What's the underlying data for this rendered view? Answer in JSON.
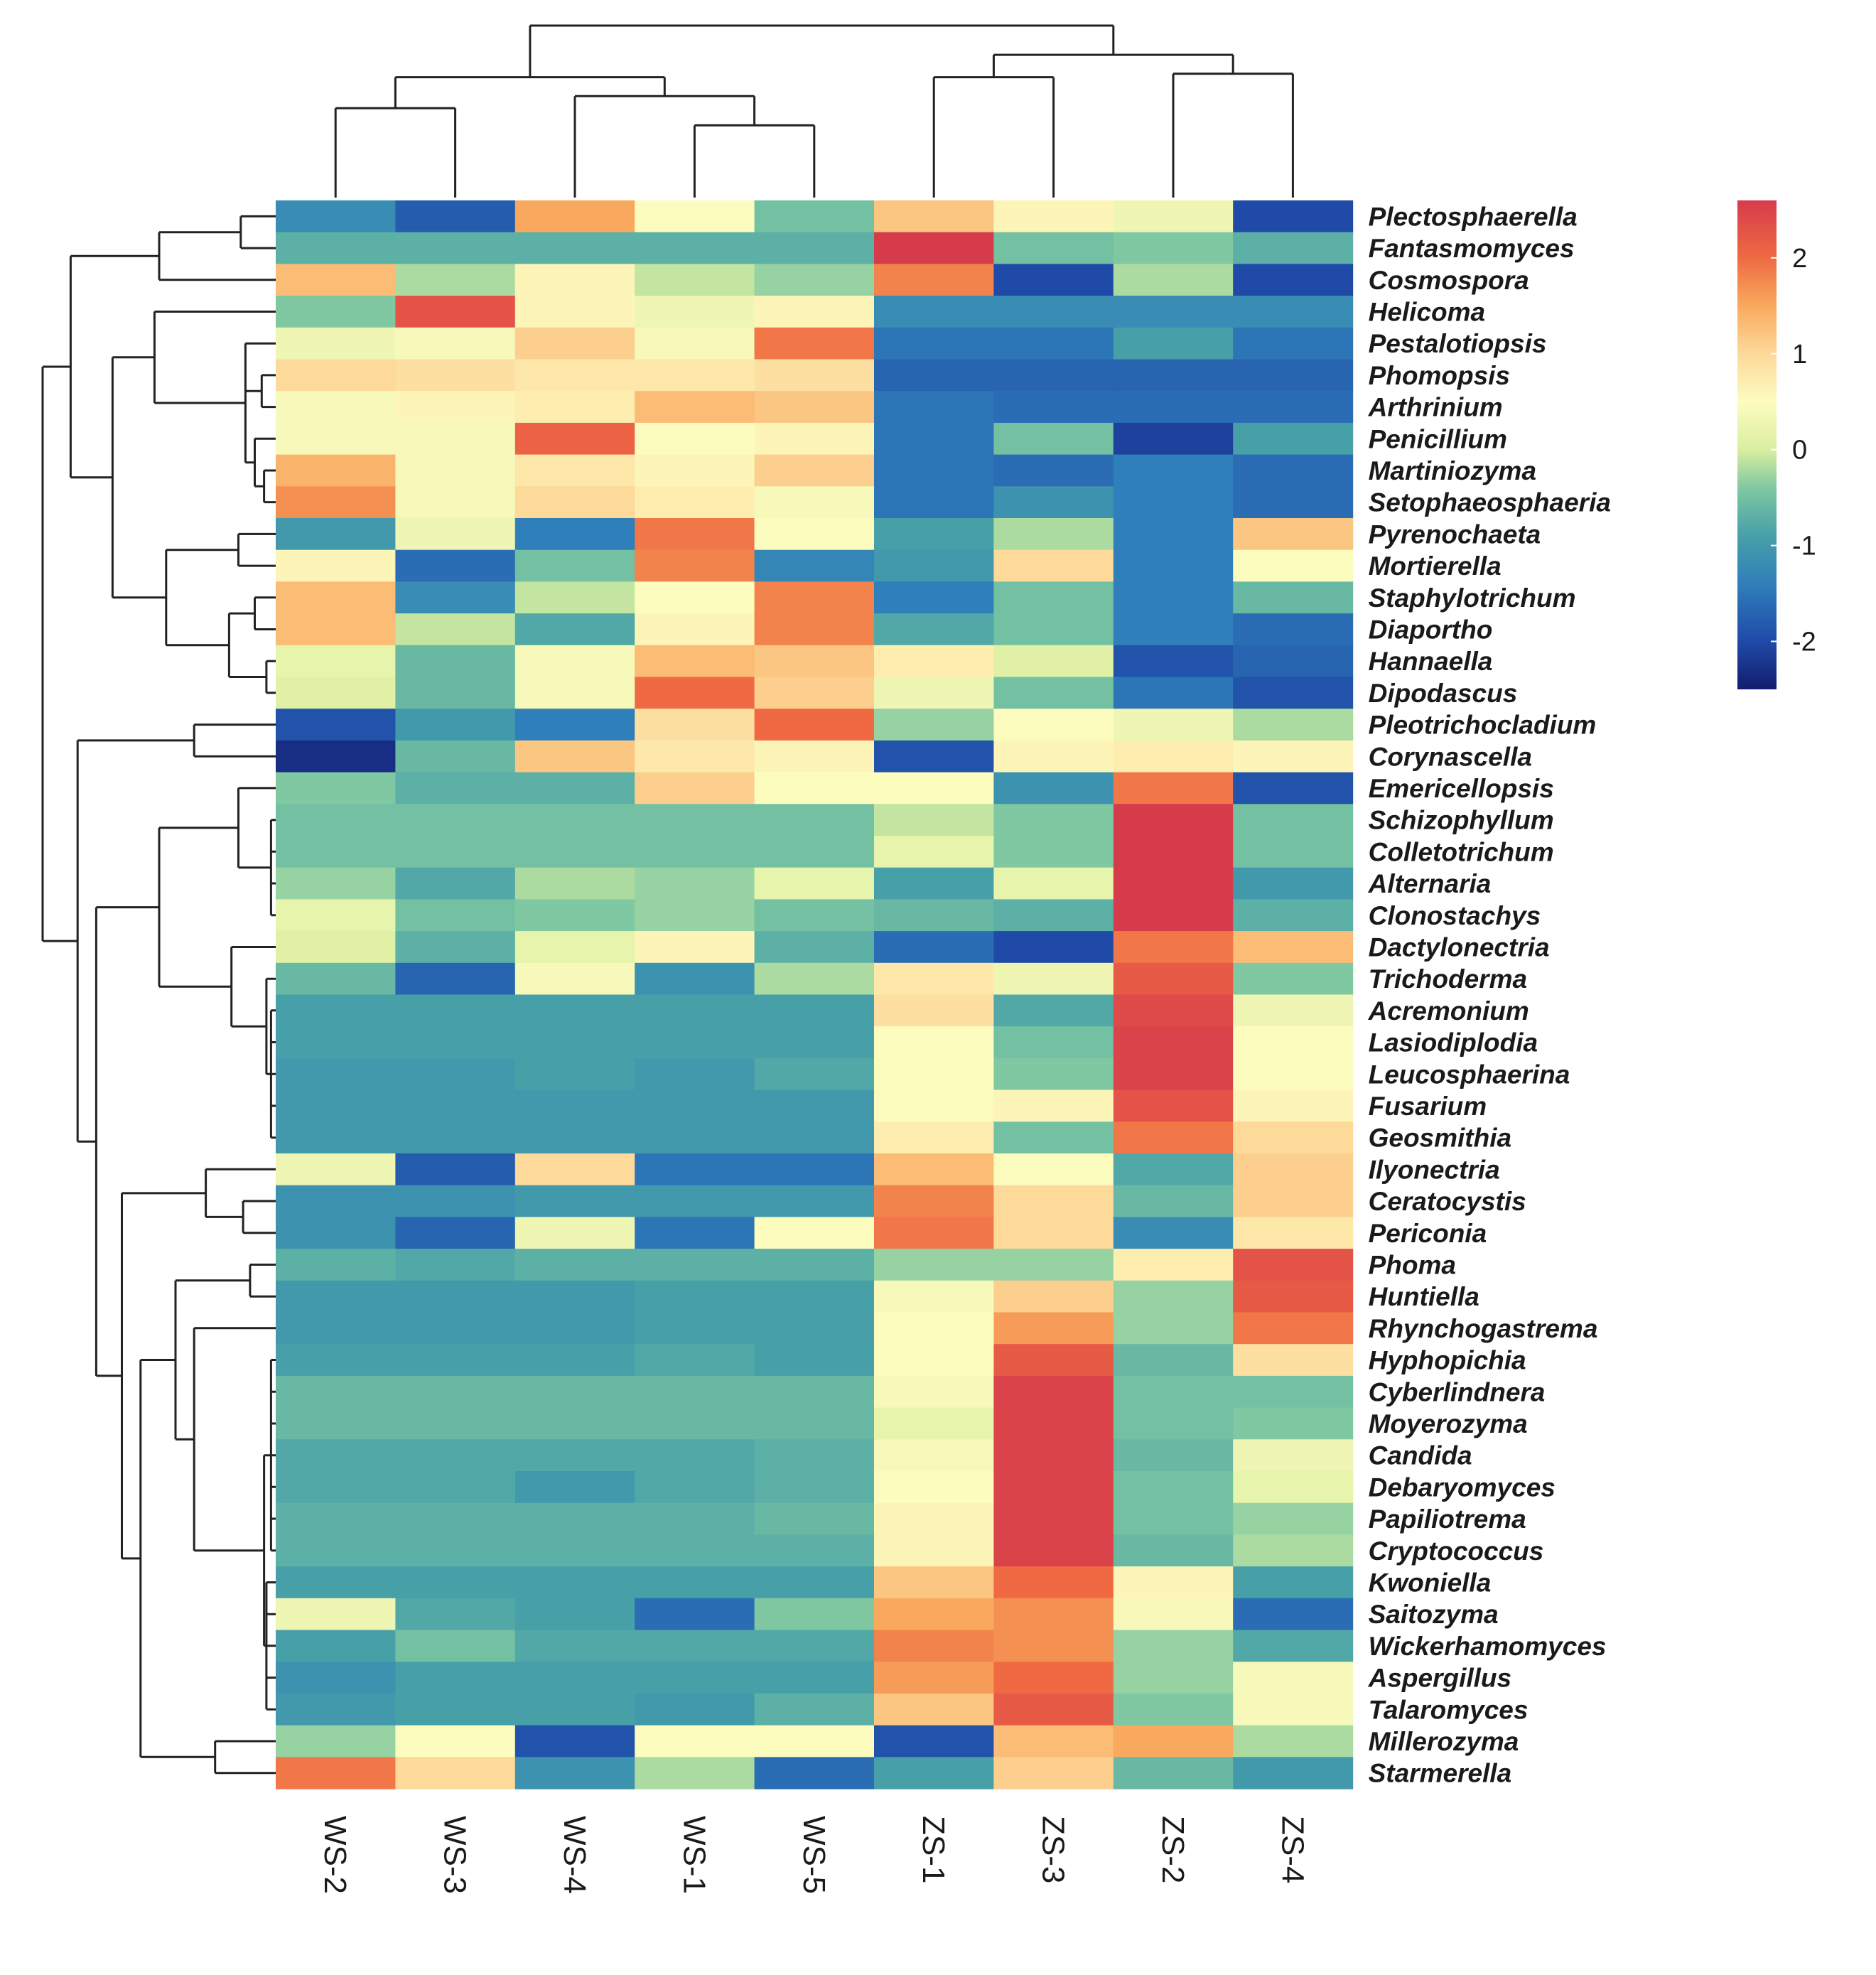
{
  "chart_data": {
    "type": "heatmap",
    "title": "",
    "xlabel": "",
    "ylabel": "",
    "columns": [
      "WS-2",
      "WS-3",
      "WS-4",
      "WS-1",
      "WS-5",
      "ZS-1",
      "ZS-3",
      "ZS-2",
      "ZS-4"
    ],
    "rows": [
      "Plectosphaerella",
      "Fantasmomyces",
      "Cosmospora",
      "Helicoma",
      "Pestalotiopsis",
      "Phomopsis",
      "Arthrinium",
      "Penicillium",
      "Martiniozyma",
      "Setophaeosphaeria",
      "Pyrenochaeta",
      "Mortierella",
      "Staphylotrichum",
      "Diaportho",
      "Hannaella",
      "Dipodascus",
      "Pleotrichocladium",
      "Corynascella",
      "Emericellopsis",
      "Schizophyllum",
      "Colletotrichum",
      "Alternaria",
      "Clonostachys",
      "Dactylonectria",
      "Trichoderma",
      "Acremonium",
      "Lasiodiplodia",
      "Leucosphaerina",
      "Fusarium",
      "Geosmithia",
      "Ilyonectria",
      "Ceratocystis",
      "Periconia",
      "Phoma",
      "Huntiella",
      "Rhynchogastrema",
      "Hyphopichia",
      "Cyberlindnera",
      "Moyerozyma",
      "Candida",
      "Debaryomyces",
      "Papiliotrema",
      "Cryptococcus",
      "Kwoniella",
      "Saitozyma",
      "Wickerhamomyces",
      "Aspergillus",
      "Talaromyces",
      "Millerozyma",
      "Starmerella"
    ],
    "values": [
      [
        -1.2,
        -1.8,
        1.5,
        0.5,
        -0.5,
        1.2,
        0.6,
        0.3,
        -2.0
      ],
      [
        -0.7,
        -0.7,
        -0.7,
        -0.7,
        -0.7,
        2.6,
        -0.5,
        -0.4,
        -0.7
      ],
      [
        1.3,
        -0.2,
        0.6,
        -0.1,
        -0.3,
        1.8,
        -2.0,
        -0.2,
        -2.0
      ],
      [
        -0.4,
        2.3,
        0.6,
        0.3,
        0.6,
        -1.2,
        -1.2,
        -1.2,
        -1.2
      ],
      [
        0.3,
        0.4,
        1.1,
        0.4,
        1.9,
        -1.5,
        -1.5,
        -0.9,
        -1.5
      ],
      [
        1.0,
        0.9,
        0.8,
        0.8,
        0.9,
        -1.7,
        -1.7,
        -1.7,
        -1.7
      ],
      [
        0.4,
        0.6,
        0.7,
        1.3,
        1.2,
        -1.5,
        -1.6,
        -1.6,
        -1.6
      ],
      [
        0.4,
        0.4,
        2.1,
        0.5,
        0.6,
        -1.5,
        -0.5,
        -2.1,
        -0.9
      ],
      [
        1.4,
        0.4,
        0.8,
        0.6,
        1.1,
        -1.5,
        -1.6,
        -1.4,
        -1.6
      ],
      [
        1.7,
        0.4,
        1.0,
        0.7,
        0.4,
        -1.5,
        -1.1,
        -1.4,
        -1.6
      ],
      [
        -1.0,
        0.3,
        -1.4,
        1.9,
        0.5,
        -0.9,
        -0.2,
        -1.4,
        1.2
      ],
      [
        0.6,
        -1.6,
        -0.5,
        1.8,
        -1.3,
        -1.0,
        1.0,
        -1.4,
        0.5
      ],
      [
        1.3,
        -1.2,
        -0.1,
        0.5,
        1.8,
        -1.4,
        -0.5,
        -1.4,
        -0.6
      ],
      [
        1.3,
        -0.1,
        -0.8,
        0.6,
        1.8,
        -0.8,
        -0.5,
        -1.4,
        -1.6
      ],
      [
        0.2,
        -0.6,
        0.4,
        1.3,
        1.2,
        0.7,
        0.1,
        -1.9,
        -1.7
      ],
      [
        0.1,
        -0.6,
        0.4,
        2.0,
        1.1,
        0.3,
        -0.5,
        -1.5,
        -1.9
      ],
      [
        -1.9,
        -1.0,
        -1.4,
        0.9,
        2.0,
        -0.3,
        0.5,
        0.3,
        -0.2
      ],
      [
        -2.3,
        -0.6,
        1.2,
        0.8,
        0.6,
        -1.9,
        0.6,
        0.7,
        0.6
      ],
      [
        -0.4,
        -0.7,
        -0.7,
        1.1,
        0.5,
        0.5,
        -1.1,
        1.9,
        -1.9
      ],
      [
        -0.5,
        -0.5,
        -0.5,
        -0.5,
        -0.5,
        -0.1,
        -0.4,
        2.6,
        -0.5
      ],
      [
        -0.5,
        -0.5,
        -0.5,
        -0.5,
        -0.5,
        0.2,
        -0.4,
        2.6,
        -0.5
      ],
      [
        -0.3,
        -0.8,
        -0.2,
        -0.3,
        0.2,
        -0.9,
        0.2,
        2.6,
        -1.0
      ],
      [
        0.2,
        -0.5,
        -0.4,
        -0.3,
        -0.5,
        -0.6,
        -0.7,
        2.6,
        -0.7
      ],
      [
        0.1,
        -0.7,
        0.2,
        0.6,
        -0.7,
        -1.6,
        -2.0,
        1.9,
        1.3
      ],
      [
        -0.6,
        -1.7,
        0.4,
        -1.1,
        -0.2,
        0.8,
        0.3,
        2.2,
        -0.4
      ],
      [
        -0.9,
        -0.9,
        -0.9,
        -0.9,
        -0.9,
        0.9,
        -0.8,
        2.4,
        0.3
      ],
      [
        -0.9,
        -0.9,
        -0.9,
        -0.9,
        -0.9,
        0.5,
        -0.5,
        2.5,
        0.5
      ],
      [
        -1.0,
        -1.0,
        -0.9,
        -1.0,
        -0.8,
        0.5,
        -0.4,
        2.5,
        0.5
      ],
      [
        -1.0,
        -1.0,
        -1.0,
        -1.0,
        -1.0,
        0.5,
        0.6,
        2.3,
        0.6
      ],
      [
        -1.0,
        -1.0,
        -1.0,
        -1.0,
        -1.0,
        0.7,
        -0.5,
        1.9,
        1.0
      ],
      [
        0.3,
        -1.8,
        1.0,
        -1.5,
        -1.5,
        1.3,
        0.5,
        -0.8,
        1.1
      ],
      [
        -1.1,
        -1.1,
        -1.0,
        -1.0,
        -1.0,
        1.8,
        1.0,
        -0.6,
        1.1
      ],
      [
        -1.1,
        -1.7,
        0.3,
        -1.5,
        0.5,
        1.9,
        1.0,
        -1.2,
        0.8
      ],
      [
        -0.7,
        -0.8,
        -0.7,
        -0.7,
        -0.7,
        -0.3,
        -0.3,
        0.7,
        2.3
      ],
      [
        -1.0,
        -1.0,
        -1.0,
        -0.9,
        -0.9,
        0.4,
        1.1,
        -0.3,
        2.2
      ],
      [
        -1.0,
        -1.0,
        -1.0,
        -0.9,
        -0.9,
        0.5,
        1.6,
        -0.3,
        1.9
      ],
      [
        -0.9,
        -0.9,
        -0.9,
        -0.8,
        -0.9,
        0.5,
        2.2,
        -0.6,
        0.9
      ],
      [
        -0.6,
        -0.6,
        -0.6,
        -0.6,
        -0.6,
        0.4,
        2.5,
        -0.5,
        -0.5
      ],
      [
        -0.6,
        -0.6,
        -0.6,
        -0.6,
        -0.6,
        0.2,
        2.5,
        -0.5,
        -0.4
      ],
      [
        -0.8,
        -0.8,
        -0.8,
        -0.8,
        -0.7,
        0.4,
        2.5,
        -0.6,
        0.3
      ],
      [
        -0.8,
        -0.8,
        -1.0,
        -0.8,
        -0.7,
        0.5,
        2.5,
        -0.5,
        0.2
      ],
      [
        -0.7,
        -0.7,
        -0.7,
        -0.7,
        -0.6,
        0.6,
        2.5,
        -0.5,
        -0.3
      ],
      [
        -0.7,
        -0.7,
        -0.7,
        -0.7,
        -0.7,
        0.6,
        2.5,
        -0.6,
        -0.2
      ],
      [
        -0.9,
        -0.9,
        -0.9,
        -0.9,
        -0.9,
        1.2,
        2.0,
        0.6,
        -0.9
      ],
      [
        0.3,
        -0.8,
        -0.9,
        -1.6,
        -0.4,
        1.5,
        1.7,
        0.4,
        -1.6
      ],
      [
        -0.9,
        -0.5,
        -0.8,
        -0.8,
        -0.8,
        1.8,
        1.7,
        -0.3,
        -0.8
      ],
      [
        -1.1,
        -0.9,
        -0.9,
        -0.9,
        -0.9,
        1.6,
        2.0,
        -0.3,
        0.4
      ],
      [
        -1.0,
        -0.9,
        -0.9,
        -1.0,
        -0.7,
        1.2,
        2.2,
        -0.4,
        0.4
      ],
      [
        -0.3,
        0.5,
        -1.9,
        0.5,
        0.5,
        -1.9,
        1.3,
        1.5,
        -0.2
      ],
      [
        1.9,
        1.0,
        -1.1,
        -0.2,
        -1.6,
        -0.9,
        1.1,
        -0.6,
        -1.0
      ]
    ],
    "color_scale": {
      "min": -2.5,
      "max": 2.6,
      "stops": [
        [
          -2.5,
          "#141c6e"
        ],
        [
          -2.0,
          "#1f4aa8"
        ],
        [
          -1.4,
          "#2f7fba"
        ],
        [
          -0.9,
          "#47a0a8"
        ],
        [
          -0.4,
          "#7fc8a2"
        ],
        [
          0.0,
          "#d9eea0"
        ],
        [
          0.5,
          "#fdfcbf"
        ],
        [
          1.0,
          "#fdd99a"
        ],
        [
          1.5,
          "#f9a95e"
        ],
        [
          2.0,
          "#ef6a42"
        ],
        [
          2.6,
          "#d63b4b"
        ]
      ],
      "ticks": [
        -2,
        -1,
        0,
        1,
        2
      ]
    },
    "legend": "right",
    "grid": false,
    "dendrogram": {
      "rows": true,
      "columns": true
    }
  }
}
